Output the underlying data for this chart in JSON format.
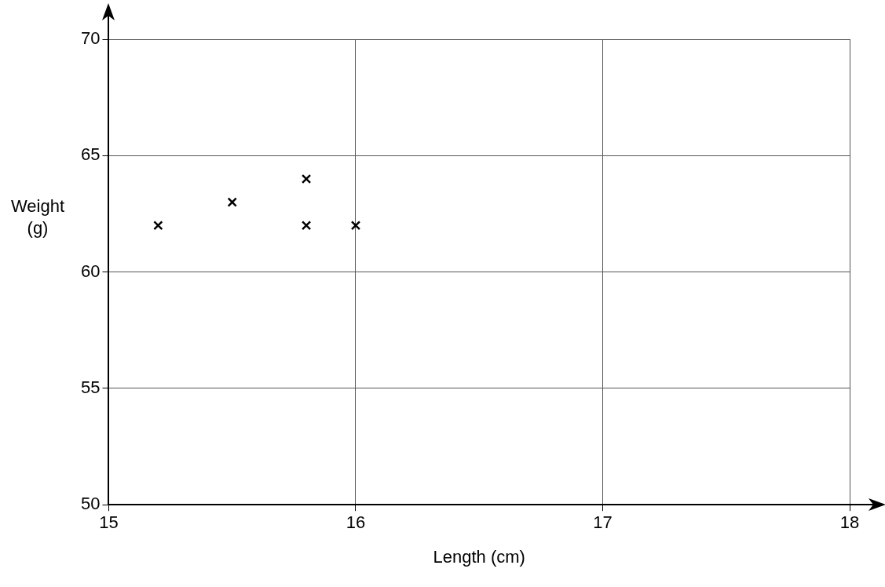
{
  "chart_data": {
    "type": "scatter",
    "xlabel": "Length (cm)",
    "ylabel": "Weight (g)",
    "series": [
      {
        "color": "#000000",
        "x": [
          15.2,
          15.5,
          15.8,
          15.8,
          16
        ],
        "values": [
          62,
          63,
          64,
          62,
          62
        ]
      }
    ],
    "xlim": [
      15,
      18
    ],
    "xticks": [
      15,
      16,
      17,
      18
    ],
    "ylim": [
      50,
      70
    ],
    "yticks": [
      50,
      55,
      60,
      65,
      70
    ],
    "grid": true,
    "marker": "cross",
    "legend": false
  }
}
